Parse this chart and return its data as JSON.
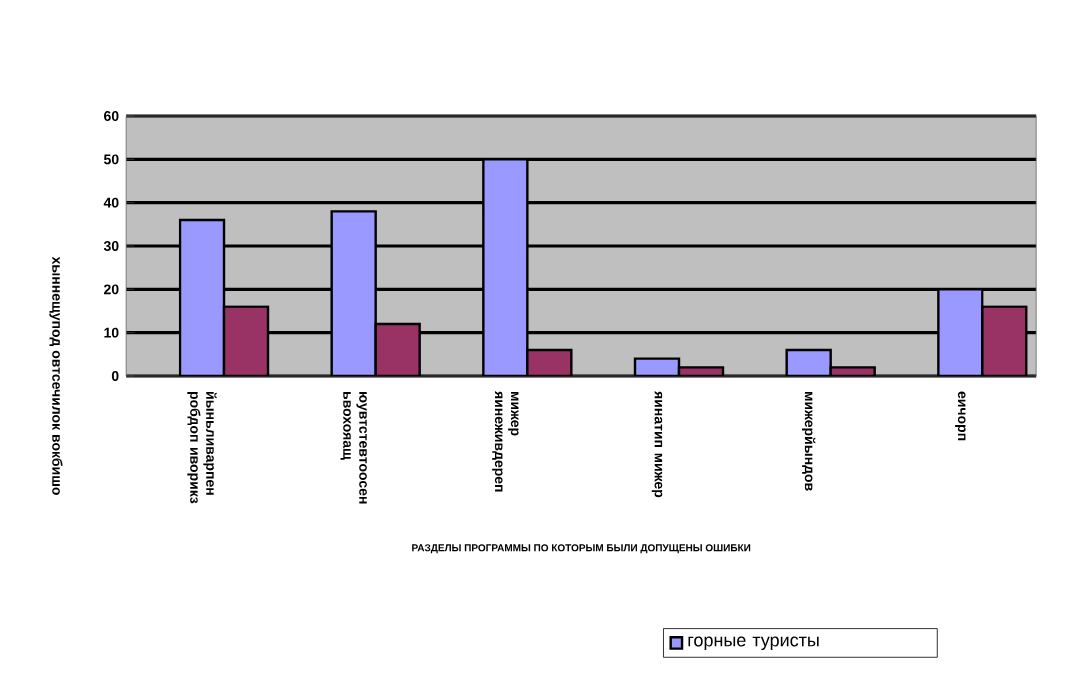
{
  "chart_data": {
    "type": "bar",
    "xlabel": "РАЗДЕЛЫ ПРОГРАММЫ ПО КОТОРЫМ БЫЛИ ДОПУЩЕНЫ ОШИБКИ",
    "ylabel": "хыннещупод овтсечилок вокбишо",
    "categories": [
      "йыньливарпен робдоп иворикз",
      "юувтстевтоосен ьвохояащ",
      "мижер яинеживдереп",
      "яинатип мижер",
      "мижерйындов",
      "еичорп"
    ],
    "series": [
      {
        "name": "горные туристы",
        "color": "#9999ff",
        "values": [
          36,
          38,
          50,
          4,
          6,
          20
        ]
      },
      {
        "color": "#993366",
        "values": [
          16,
          12,
          6,
          2,
          2,
          16
        ]
      }
    ],
    "ylim": [
      0,
      60
    ],
    "yticks": [
      0,
      10,
      20,
      30,
      40,
      50,
      60
    ],
    "grid": "y",
    "legend": "bottom right"
  }
}
